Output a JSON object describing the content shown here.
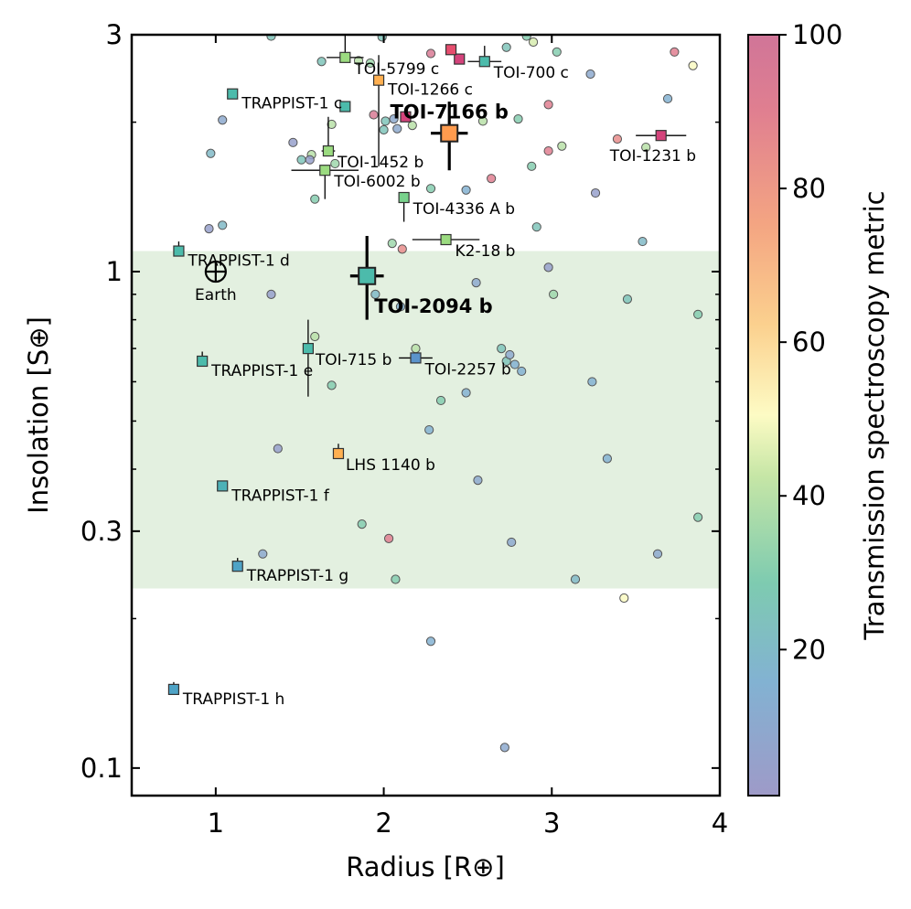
{
  "chart_data": {
    "type": "scatter",
    "xlabel": "Radius [R⊕]",
    "ylabel": "Insolation [S⊕]",
    "colorbar_label": "Transmission spectroscopy metric",
    "xlim": [
      0.5,
      4
    ],
    "ylim": [
      0.088,
      3
    ],
    "y_scale": "log",
    "x_ticks": [
      1,
      2,
      3,
      4
    ],
    "x_tick_labels": [
      "1",
      "2",
      "3",
      "4"
    ],
    "y_ticks": [
      0.1,
      0.3,
      1,
      3
    ],
    "y_tick_labels": [
      "0.1",
      "0.3",
      "1",
      "3"
    ],
    "colorbar_ticks": [
      20,
      40,
      60,
      80,
      100
    ],
    "colorbar_range": [
      1,
      100
    ],
    "habitable_zone": {
      "y_min": 0.23,
      "y_max": 1.1,
      "color": "#e3f0e0"
    },
    "earth": {
      "label": "Earth",
      "x": 1.0,
      "y": 1.0
    },
    "background_planets": [
      {
        "x": 1.33,
        "y": 2.98,
        "tsm": 25
      },
      {
        "x": 1.99,
        "y": 2.97,
        "tsm": 25
      },
      {
        "x": 2.85,
        "y": 2.98,
        "tsm": 30
      },
      {
        "x": 2.28,
        "y": 2.75,
        "tsm": 95
      },
      {
        "x": 2.73,
        "y": 2.83,
        "tsm": 25
      },
      {
        "x": 2.89,
        "y": 2.9,
        "tsm": 45
      },
      {
        "x": 3.03,
        "y": 2.77,
        "tsm": 30
      },
      {
        "x": 3.73,
        "y": 2.77,
        "tsm": 90
      },
      {
        "x": 1.63,
        "y": 2.65,
        "tsm": 25
      },
      {
        "x": 1.85,
        "y": 2.66,
        "tsm": 40
      },
      {
        "x": 1.92,
        "y": 2.63,
        "tsm": 35
      },
      {
        "x": 3.23,
        "y": 2.5,
        "tsm": 10
      },
      {
        "x": 3.84,
        "y": 2.6,
        "tsm": 50
      },
      {
        "x": 3.69,
        "y": 2.23,
        "tsm": 15
      },
      {
        "x": 2.98,
        "y": 2.17,
        "tsm": 90
      },
      {
        "x": 1.04,
        "y": 2.02,
        "tsm": 10
      },
      {
        "x": 1.94,
        "y": 2.07,
        "tsm": 95
      },
      {
        "x": 2.01,
        "y": 2.01,
        "tsm": 25
      },
      {
        "x": 1.69,
        "y": 1.98,
        "tsm": 40
      },
      {
        "x": 2.06,
        "y": 2.03,
        "tsm": 10
      },
      {
        "x": 2.0,
        "y": 1.93,
        "tsm": 25
      },
      {
        "x": 2.08,
        "y": 1.94,
        "tsm": 10
      },
      {
        "x": 2.17,
        "y": 1.97,
        "tsm": 40
      },
      {
        "x": 2.59,
        "y": 2.01,
        "tsm": 40
      },
      {
        "x": 2.8,
        "y": 2.03,
        "tsm": 30
      },
      {
        "x": 3.39,
        "y": 1.85,
        "tsm": 85
      },
      {
        "x": 3.56,
        "y": 1.78,
        "tsm": 40
      },
      {
        "x": 1.46,
        "y": 1.82,
        "tsm": 5
      },
      {
        "x": 1.51,
        "y": 1.68,
        "tsm": 25
      },
      {
        "x": 1.57,
        "y": 1.72,
        "tsm": 40
      },
      {
        "x": 1.56,
        "y": 1.68,
        "tsm": 5
      },
      {
        "x": 2.98,
        "y": 1.75,
        "tsm": 90
      },
      {
        "x": 3.06,
        "y": 1.79,
        "tsm": 40
      },
      {
        "x": 1.71,
        "y": 1.65,
        "tsm": 35
      },
      {
        "x": 2.88,
        "y": 1.63,
        "tsm": 30
      },
      {
        "x": 2.64,
        "y": 1.54,
        "tsm": 90
      },
      {
        "x": 2.28,
        "y": 1.47,
        "tsm": 30
      },
      {
        "x": 2.49,
        "y": 1.46,
        "tsm": 15
      },
      {
        "x": 0.97,
        "y": 1.73,
        "tsm": 20
      },
      {
        "x": 3.26,
        "y": 1.44,
        "tsm": 5
      },
      {
        "x": 1.59,
        "y": 1.4,
        "tsm": 30
      },
      {
        "x": 0.96,
        "y": 1.22,
        "tsm": 5
      },
      {
        "x": 1.04,
        "y": 1.24,
        "tsm": 20
      },
      {
        "x": 2.91,
        "y": 1.23,
        "tsm": 25
      },
      {
        "x": 2.05,
        "y": 1.14,
        "tsm": 35
      },
      {
        "x": 3.54,
        "y": 1.15,
        "tsm": 20
      },
      {
        "x": 2.11,
        "y": 1.11,
        "tsm": 85
      },
      {
        "x": 2.98,
        "y": 1.02,
        "tsm": 5
      },
      {
        "x": 1.33,
        "y": 0.9,
        "tsm": 5
      },
      {
        "x": 1.95,
        "y": 0.9,
        "tsm": 20
      },
      {
        "x": 2.1,
        "y": 0.85,
        "tsm": 15
      },
      {
        "x": 2.55,
        "y": 0.95,
        "tsm": 10
      },
      {
        "x": 3.01,
        "y": 0.9,
        "tsm": 35
      },
      {
        "x": 3.45,
        "y": 0.88,
        "tsm": 25
      },
      {
        "x": 3.87,
        "y": 0.82,
        "tsm": 30
      },
      {
        "x": 1.59,
        "y": 0.74,
        "tsm": 40
      },
      {
        "x": 2.19,
        "y": 0.7,
        "tsm": 40
      },
      {
        "x": 2.7,
        "y": 0.7,
        "tsm": 25
      },
      {
        "x": 2.73,
        "y": 0.66,
        "tsm": 25
      },
      {
        "x": 2.75,
        "y": 0.68,
        "tsm": 10
      },
      {
        "x": 2.78,
        "y": 0.65,
        "tsm": 15
      },
      {
        "x": 2.82,
        "y": 0.63,
        "tsm": 15
      },
      {
        "x": 1.69,
        "y": 0.59,
        "tsm": 30
      },
      {
        "x": 3.24,
        "y": 0.6,
        "tsm": 15
      },
      {
        "x": 2.34,
        "y": 0.55,
        "tsm": 30
      },
      {
        "x": 2.49,
        "y": 0.57,
        "tsm": 15
      },
      {
        "x": 2.27,
        "y": 0.48,
        "tsm": 15
      },
      {
        "x": 1.37,
        "y": 0.44,
        "tsm": 5
      },
      {
        "x": 3.33,
        "y": 0.42,
        "tsm": 15
      },
      {
        "x": 2.56,
        "y": 0.38,
        "tsm": 10
      },
      {
        "x": 3.87,
        "y": 0.32,
        "tsm": 30
      },
      {
        "x": 1.87,
        "y": 0.31,
        "tsm": 30
      },
      {
        "x": 2.03,
        "y": 0.29,
        "tsm": 90
      },
      {
        "x": 2.76,
        "y": 0.285,
        "tsm": 10
      },
      {
        "x": 1.28,
        "y": 0.27,
        "tsm": 10
      },
      {
        "x": 3.63,
        "y": 0.27,
        "tsm": 10
      },
      {
        "x": 2.07,
        "y": 0.24,
        "tsm": 30
      },
      {
        "x": 3.14,
        "y": 0.24,
        "tsm": 20
      },
      {
        "x": 3.43,
        "y": 0.22,
        "tsm": 50
      },
      {
        "x": 2.28,
        "y": 0.18,
        "tsm": 15
      },
      {
        "x": 2.72,
        "y": 0.11,
        "tsm": 10
      }
    ],
    "labeled_planets": [
      {
        "name": "TOI-5799 c",
        "x": 1.77,
        "y": 2.7,
        "tsm": 40,
        "xerr": 0.11,
        "yerr_lo": 0.0,
        "yerr_hi": 0.4,
        "dx": 10,
        "dy": 18
      },
      {
        "name": "TOI-700 c",
        "x": 2.6,
        "y": 2.65,
        "tsm": 25,
        "xerr": 0.1,
        "yerr_lo": 0.0,
        "yerr_hi": 0.2,
        "dx": 10,
        "dy": 18
      },
      {
        "name": "TOI-1266 c",
        "x": 1.97,
        "y": 2.43,
        "tsm": 65,
        "xerr": 0.0,
        "yerr_lo": 0.8,
        "yerr_hi": 0.3,
        "dx": 10,
        "dy": 16
      },
      {
        "name": "TRAPPIST-1 c",
        "x": 1.1,
        "y": 2.28,
        "tsm": 25,
        "xerr": 0.0,
        "yerr_lo": 0.0,
        "yerr_hi": 0.0,
        "dx": 10,
        "dy": 16
      },
      {
        "name": "TOI-1452 b",
        "x": 1.67,
        "y": 1.75,
        "tsm": 40,
        "xerr": 0.04,
        "yerr_lo": 0.0,
        "yerr_hi": 0.3,
        "dx": 10,
        "dy": 18
      },
      {
        "name": "TOI-6002 b",
        "x": 1.65,
        "y": 1.6,
        "tsm": 40,
        "xerr": 0.2,
        "yerr_lo": 0.2,
        "yerr_hi": 0.0,
        "dx": 10,
        "dy": 18
      },
      {
        "name": "TOI-1231 b",
        "x": 3.65,
        "y": 1.88,
        "tsm": 100,
        "xerr": 0.15,
        "yerr_lo": 0.0,
        "yerr_hi": 0.0,
        "dx": -56,
        "dy": 28
      },
      {
        "name": "TOI-4336 A b",
        "x": 2.12,
        "y": 1.41,
        "tsm": 35,
        "xerr": 0.0,
        "yerr_lo": 0.15,
        "yerr_hi": 0.0,
        "dx": 10,
        "dy": 18
      },
      {
        "name": "K2-18 b",
        "x": 2.37,
        "y": 1.16,
        "tsm": 40,
        "xerr": 0.2,
        "yerr_lo": 0.0,
        "yerr_hi": 0.0,
        "dx": 10,
        "dy": 18
      },
      {
        "name": "TRAPPIST-1 d",
        "x": 0.78,
        "y": 1.1,
        "tsm": 25,
        "xerr": 0.0,
        "yerr_lo": 0.0,
        "yerr_hi": 0.05,
        "dx": 10,
        "dy": 16
      },
      {
        "name": "TOI-715 b",
        "x": 1.55,
        "y": 0.7,
        "tsm": 25,
        "xerr": 0.0,
        "yerr_lo": 0.14,
        "yerr_hi": 0.1,
        "dx": 8,
        "dy": 18
      },
      {
        "name": "TOI-2257 b",
        "x": 2.19,
        "y": 0.67,
        "tsm": 12,
        "xerr": 0.1,
        "yerr_lo": 0.0,
        "yerr_hi": 0.0,
        "dx": 10,
        "dy": 18
      },
      {
        "name": "TRAPPIST-1 e",
        "x": 0.92,
        "y": 0.66,
        "tsm": 25,
        "xerr": 0.0,
        "yerr_lo": 0.0,
        "yerr_hi": 0.03,
        "dx": 10,
        "dy": 16
      },
      {
        "name": "LHS 1140 b",
        "x": 1.73,
        "y": 0.43,
        "tsm": 65,
        "xerr": 0.0,
        "yerr_lo": 0.0,
        "yerr_hi": 0.02,
        "dx": 8,
        "dy": 18
      },
      {
        "name": "TRAPPIST-1 f",
        "x": 1.04,
        "y": 0.37,
        "tsm": 22,
        "xerr": 0.0,
        "yerr_lo": 0.0,
        "yerr_hi": 0.0,
        "dx": 10,
        "dy": 16
      },
      {
        "name": "TRAPPIST-1 g",
        "x": 1.13,
        "y": 0.255,
        "tsm": 18,
        "xerr": 0.0,
        "yerr_lo": 0.0,
        "yerr_hi": 0.01,
        "dx": 10,
        "dy": 16
      },
      {
        "name": "TRAPPIST-1 h",
        "x": 0.75,
        "y": 0.144,
        "tsm": 18,
        "xerr": 0.0,
        "yerr_lo": 0.0,
        "yerr_hi": 0.005,
        "dx": 10,
        "dy": 16
      }
    ],
    "highlighted_planets": [
      {
        "name": "TOI-7166 b",
        "x": 2.39,
        "y": 1.9,
        "tsm": 70,
        "xerr": 0.11,
        "yerr_lo": 0.3,
        "yerr_hi": 0.3,
        "dx": 0,
        "dy": -16
      },
      {
        "name": "TOI-2094 b",
        "x": 1.9,
        "y": 0.98,
        "tsm": 25,
        "xerr": 0.1,
        "yerr_lo": 0.18,
        "yerr_hi": 0.2,
        "dx": 8,
        "dy": 40
      }
    ],
    "extra_marks": [
      {
        "name": "red-square-near-7166",
        "x": 2.45,
        "y": 2.68,
        "tsm": 100
      },
      {
        "name": "red-square-2",
        "x": 2.4,
        "y": 2.8,
        "tsm": 92
      },
      {
        "name": "green-square-1266-below",
        "x": 1.77,
        "y": 2.15,
        "tsm": 25
      },
      {
        "name": "crimson-square",
        "x": 2.13,
        "y": 2.05,
        "tsm": 100
      }
    ]
  }
}
